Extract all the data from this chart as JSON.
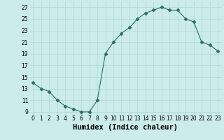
{
  "x": [
    0,
    1,
    2,
    3,
    4,
    5,
    6,
    7,
    8,
    9,
    10,
    11,
    12,
    13,
    14,
    15,
    16,
    17,
    18,
    19,
    20,
    21,
    22,
    23
  ],
  "y": [
    14,
    13,
    12.5,
    11,
    10,
    9.5,
    9,
    9,
    11,
    19,
    21,
    22.5,
    23.5,
    25,
    26,
    26.5,
    27,
    26.5,
    26.5,
    25,
    24.5,
    21,
    20.5,
    19.5
  ],
  "line_color": "#2a6e62",
  "marker": "D",
  "marker_size": 2.5,
  "background_color": "#cbece8",
  "grid_color": "#b0d8d4",
  "xlabel": "Humidex (Indice chaleur)",
  "xlim": [
    -0.5,
    23.5
  ],
  "ylim": [
    8.5,
    28.0
  ],
  "yticks": [
    9,
    11,
    13,
    15,
    17,
    19,
    21,
    23,
    25,
    27
  ],
  "xticks": [
    0,
    1,
    2,
    3,
    4,
    5,
    6,
    7,
    8,
    9,
    10,
    11,
    12,
    13,
    14,
    15,
    16,
    17,
    18,
    19,
    20,
    21,
    22,
    23
  ],
  "tick_fontsize": 5.5,
  "xlabel_fontsize": 7.5
}
